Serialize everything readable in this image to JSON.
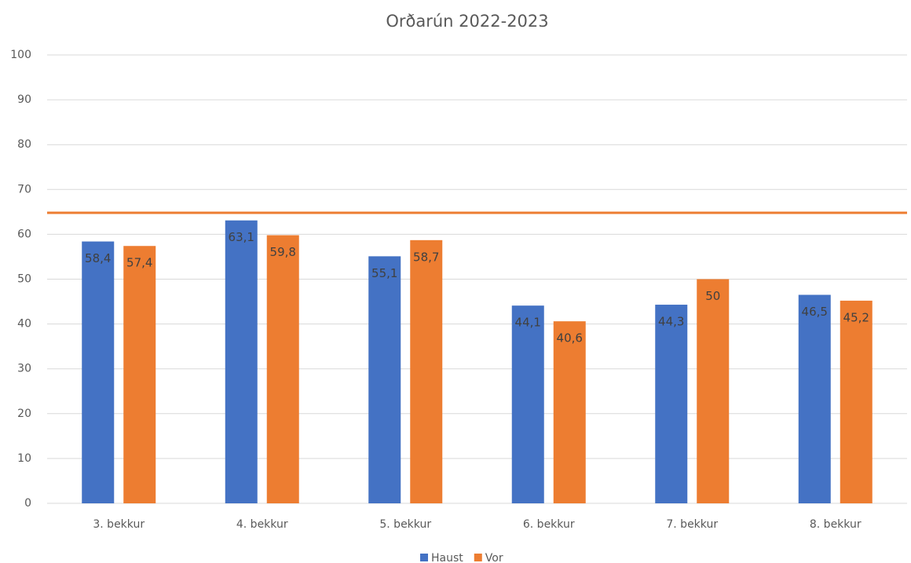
{
  "chart_data": {
    "type": "bar",
    "title": "Orðarún 2022-2023",
    "categories": [
      "3. bekkur",
      "4. bekkur",
      "5. bekkur",
      "6. bekkur",
      "7. bekkur",
      "8. bekkur"
    ],
    "series": [
      {
        "name": "Haust",
        "color": "#4472c4",
        "values": [
          58.4,
          63.1,
          55.1,
          44.1,
          44.3,
          46.5
        ],
        "value_labels": [
          "58,4",
          "63,1",
          "55,1",
          "44,1",
          "44,3",
          "46,5"
        ]
      },
      {
        "name": "Vor",
        "color": "#ed7d31",
        "values": [
          57.4,
          59.8,
          58.7,
          40.6,
          50,
          45.2
        ],
        "value_labels": [
          "57,4",
          "59,8",
          "58,7",
          "40,6",
          "50",
          "45,2"
        ]
      }
    ],
    "reference_line": {
      "value": 64.8,
      "color": "#ed7d31"
    },
    "ylim": [
      0,
      100
    ],
    "yticks": [
      0,
      10,
      20,
      30,
      40,
      50,
      60,
      70,
      80,
      90,
      100
    ],
    "grid": true,
    "legend": "bottom"
  }
}
